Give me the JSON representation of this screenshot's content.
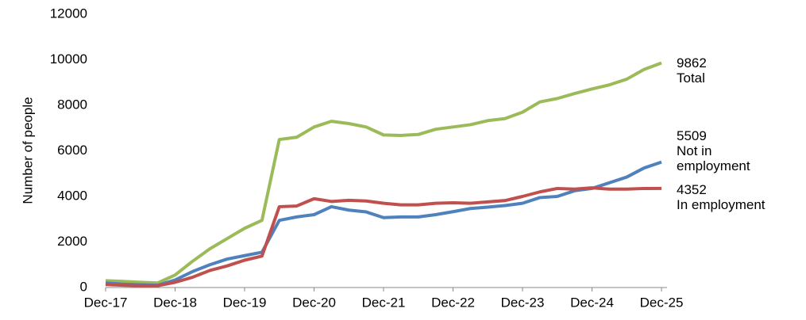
{
  "chart_data": {
    "type": "line",
    "y_axis_label": "Number of people",
    "categories": [
      "Dec-17",
      null,
      null,
      null,
      "Dec-18",
      null,
      null,
      null,
      "Dec-19",
      null,
      null,
      null,
      "Dec-20",
      null,
      null,
      null,
      "Dec-21",
      null,
      null,
      null,
      "Dec-22",
      null,
      null,
      null,
      "Dec-23",
      null,
      null,
      null,
      "Dec-24",
      null,
      null,
      null,
      "Dec-25"
    ],
    "series": [
      {
        "name": "Total",
        "color": "#9bbb59",
        "values": [
          300,
          270,
          230,
          200,
          550,
          1150,
          1700,
          2150,
          2600,
          2950,
          6500,
          6600,
          7050,
          7300,
          7200,
          7050,
          6700,
          6680,
          6720,
          6950,
          7050,
          7150,
          7330,
          7420,
          7700,
          8150,
          8300,
          8520,
          8720,
          8900,
          9150,
          9580,
          9862
        ]
      },
      {
        "name": "Not in employment",
        "color": "#4f81bd",
        "values": [
          200,
          150,
          120,
          100,
          330,
          700,
          1000,
          1250,
          1400,
          1550,
          2950,
          3100,
          3200,
          3550,
          3400,
          3320,
          3070,
          3100,
          3100,
          3200,
          3330,
          3470,
          3530,
          3600,
          3700,
          3950,
          4000,
          4250,
          4350,
          4600,
          4850,
          5250,
          5509
        ]
      },
      {
        "name": "In employment",
        "color": "#c0504d",
        "values": [
          130,
          100,
          80,
          80,
          230,
          450,
          750,
          950,
          1200,
          1380,
          3550,
          3580,
          3900,
          3780,
          3830,
          3800,
          3700,
          3630,
          3630,
          3700,
          3720,
          3700,
          3760,
          3820,
          4000,
          4200,
          4350,
          4320,
          4380,
          4320,
          4320,
          4350,
          4352
        ]
      }
    ],
    "ylim": [
      0,
      12000
    ],
    "yticks": [
      0,
      2000,
      4000,
      6000,
      8000,
      10000,
      12000
    ],
    "grid": false
  }
}
